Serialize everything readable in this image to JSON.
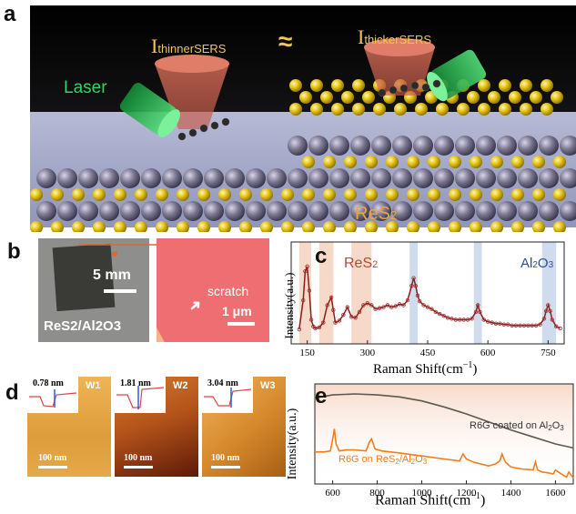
{
  "panel_a": {
    "label": "a",
    "i_thinner_main": "I",
    "i_thinner_sub": "thinnerSERS",
    "approx": "≈",
    "i_thicker_main": "I",
    "i_thicker_sub": "thickerSERS",
    "laser": "Laser",
    "material": "ReS",
    "material_sub": "2"
  },
  "panel_b": {
    "label": "b",
    "scale_left": "5 mm",
    "sample": "ReS2/Al2O3",
    "scratch": "scratch",
    "scale_right": "1 μm"
  },
  "panel_c": {
    "label": "c",
    "res2_main": "ReS",
    "res2_sub": "2",
    "al2o3": [
      "Al",
      "2",
      "O",
      "3"
    ],
    "ylabel": "Intensity(a.u.)",
    "xlabel": "Raman Shift(cm",
    "xlabel_sup": "−1",
    "xlabel_end": ")",
    "ticks": [
      "150",
      "300",
      "450",
      "600",
      "750"
    ]
  },
  "panel_d": {
    "label": "d",
    "images": [
      {
        "tag": "W1",
        "thickness": "0.78 nm",
        "scale": "100 nm"
      },
      {
        "tag": "W2",
        "thickness": "1.81 nm",
        "scale": "100 nm"
      },
      {
        "tag": "W3",
        "thickness": "3.04 nm",
        "scale": "100 nm"
      }
    ]
  },
  "panel_e": {
    "label": "e",
    "ylabel": "Intensity(a.u.)",
    "xlabel": "Raman Shift(cm",
    "xlabel_sup": "−1",
    "xlabel_end": ")",
    "ticks": [
      "600",
      "800",
      "1000",
      "1200",
      "1400",
      "1600"
    ],
    "legend_top": [
      "R6G coated on Al",
      "2",
      "O",
      "3"
    ],
    "legend_bottom": [
      "R6G on ReS",
      "2",
      "/Al",
      "2",
      "O",
      "3"
    ]
  },
  "chart_data": [
    {
      "type": "scatter",
      "panel": "c",
      "xlabel": "Raman Shift(cm−1)",
      "ylabel": "Intensity(a.u.)",
      "xlim": [
        110,
        790
      ],
      "x_ticks": [
        150,
        300,
        450,
        600,
        750
      ],
      "highlight_bands_res2": [
        [
          130,
          160
        ],
        [
          180,
          215
        ],
        [
          260,
          310
        ]
      ],
      "highlight_bands_al2o3": [
        [
          405,
          425
        ],
        [
          565,
          585
        ],
        [
          735,
          770
        ]
      ],
      "x": [
        130,
        140,
        145,
        150,
        155,
        160,
        165,
        170,
        180,
        190,
        200,
        210,
        215,
        220,
        230,
        240,
        250,
        260,
        270,
        280,
        290,
        300,
        310,
        320,
        330,
        340,
        350,
        360,
        370,
        380,
        390,
        400,
        410,
        415,
        420,
        425,
        430,
        440,
        450,
        460,
        470,
        480,
        490,
        500,
        510,
        520,
        530,
        540,
        550,
        560,
        570,
        575,
        580,
        590,
        600,
        610,
        620,
        630,
        640,
        650,
        660,
        670,
        680,
        690,
        700,
        710,
        720,
        730,
        740,
        745,
        750,
        755,
        760,
        770,
        780
      ],
      "y": [
        0.15,
        0.45,
        0.75,
        0.8,
        0.55,
        0.25,
        0.18,
        0.16,
        0.17,
        0.22,
        0.4,
        0.48,
        0.35,
        0.22,
        0.24,
        0.3,
        0.38,
        0.28,
        0.27,
        0.33,
        0.4,
        0.42,
        0.4,
        0.36,
        0.37,
        0.38,
        0.4,
        0.38,
        0.39,
        0.41,
        0.4,
        0.45,
        0.6,
        0.68,
        0.6,
        0.5,
        0.44,
        0.4,
        0.38,
        0.36,
        0.33,
        0.31,
        0.29,
        0.27,
        0.26,
        0.25,
        0.25,
        0.25,
        0.25,
        0.26,
        0.33,
        0.4,
        0.33,
        0.25,
        0.23,
        0.22,
        0.21,
        0.21,
        0.2,
        0.2,
        0.19,
        0.19,
        0.19,
        0.19,
        0.19,
        0.19,
        0.19,
        0.2,
        0.26,
        0.34,
        0.4,
        0.34,
        0.25,
        0.18,
        0.16
      ]
    },
    {
      "type": "line",
      "panel": "e",
      "xlabel": "Raman Shift(cm−1)",
      "ylabel": "Intensity(a.u.)",
      "xlim": [
        520,
        1680
      ],
      "x_ticks": [
        600,
        800,
        1000,
        1200,
        1400,
        1600
      ],
      "series": [
        {
          "name": "R6G coated on Al2O3",
          "color": "#5a5a4e",
          "x": [
            520,
            600,
            700,
            800,
            900,
            1000,
            1100,
            1200,
            1300,
            1400,
            1500,
            1600,
            1680
          ],
          "y": [
            0.86,
            0.89,
            0.9,
            0.89,
            0.87,
            0.83,
            0.77,
            0.7,
            0.62,
            0.54,
            0.47,
            0.4,
            0.36
          ]
        },
        {
          "name": "R6G on ReS2/Al2O3",
          "color": "#f07d1e",
          "x": [
            520,
            560,
            590,
            600,
            608,
            615,
            630,
            660,
            700,
            750,
            765,
            775,
            790,
            820,
            900,
            1000,
            1100,
            1170,
            1185,
            1200,
            1230,
            1300,
            1330,
            1350,
            1360,
            1375,
            1400,
            1450,
            1500,
            1510,
            1520,
            1540,
            1570,
            1590,
            1600,
            1620,
            1640,
            1650,
            1660,
            1680
          ],
          "y": [
            0.32,
            0.32,
            0.33,
            0.45,
            0.55,
            0.4,
            0.33,
            0.34,
            0.34,
            0.33,
            0.42,
            0.45,
            0.35,
            0.33,
            0.31,
            0.28,
            0.25,
            0.23,
            0.3,
            0.25,
            0.22,
            0.18,
            0.2,
            0.23,
            0.3,
            0.22,
            0.17,
            0.15,
            0.14,
            0.22,
            0.14,
            0.12,
            0.11,
            0.1,
            0.14,
            0.11,
            0.08,
            0.07,
            0.12,
            0.06
          ]
        }
      ]
    }
  ],
  "colors": {
    "scheme_bg_top": "#0a0a0a",
    "substrate": "#a7abc9",
    "sulfur": "#e6c61a",
    "rhenium": "#7a7690",
    "laser_green": "#2bbf55",
    "cone": "#c9604f",
    "label_gold": "#f4c64a",
    "wafer_pink": "#ef6e72",
    "res2_band": "#f6d9c8",
    "al2o3_band": "#cfdcee",
    "res2_text": "#b24a36",
    "al2o3_text": "#2c4d9e",
    "afm_1": "#e2a345",
    "afm_2": "#b5541a",
    "afm_3": "#d5882c"
  }
}
